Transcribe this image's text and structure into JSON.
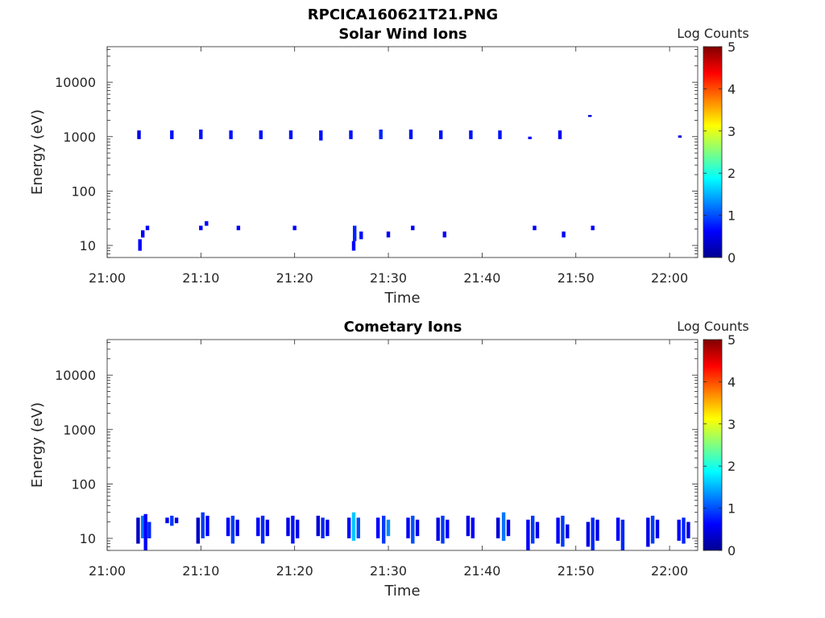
{
  "figure_title": "RPCICA160621T21.PNG",
  "colors": {
    "colormap": [
      "#00008f",
      "#0000ff",
      "#0080ff",
      "#00ffff",
      "#80ff80",
      "#ffff00",
      "#ff8000",
      "#ff0000",
      "#800000"
    ],
    "axis": "#262626"
  },
  "chart_data": [
    {
      "type": "heatmap",
      "title": "Solar Wind Ions",
      "xlabel": "Time",
      "ylabel": "Energy (eV)",
      "xlim": [
        "21:00",
        "22:03"
      ],
      "x_ticks": [
        "21:00",
        "21:10",
        "21:20",
        "21:30",
        "21:40",
        "21:50",
        "22:00"
      ],
      "ylim": [
        6,
        45000
      ],
      "yscale": "log",
      "y_ticks": [
        "10",
        "100",
        "1000",
        "10000"
      ],
      "colorbar": {
        "label": "Log Counts",
        "range": [
          0,
          5
        ],
        "ticks": [
          "0",
          "1",
          "2",
          "3",
          "4",
          "5"
        ]
      },
      "cells": [
        {
          "t": "21:03.4",
          "e": [
            900,
            1300
          ],
          "v": 0.5
        },
        {
          "t": "21:06.9",
          "e": [
            900,
            1300
          ],
          "v": 0.7
        },
        {
          "t": "21:10.0",
          "e": [
            900,
            1350
          ],
          "v": 0.7
        },
        {
          "t": "21:13.2",
          "e": [
            900,
            1300
          ],
          "v": 0.7
        },
        {
          "t": "21:16.4",
          "e": [
            900,
            1300
          ],
          "v": 0.7
        },
        {
          "t": "21:19.6",
          "e": [
            900,
            1300
          ],
          "v": 0.7
        },
        {
          "t": "21:22.8",
          "e": [
            850,
            1300
          ],
          "v": 0.7
        },
        {
          "t": "21:26.0",
          "e": [
            900,
            1300
          ],
          "v": 0.7
        },
        {
          "t": "21:29.2",
          "e": [
            900,
            1350
          ],
          "v": 0.8
        },
        {
          "t": "21:32.4",
          "e": [
            900,
            1350
          ],
          "v": 0.7
        },
        {
          "t": "21:35.6",
          "e": [
            900,
            1300
          ],
          "v": 0.7
        },
        {
          "t": "21:38.8",
          "e": [
            900,
            1300
          ],
          "v": 0.7
        },
        {
          "t": "21:41.9",
          "e": [
            900,
            1300
          ],
          "v": 0.7
        },
        {
          "t": "21:45.1",
          "e": [
            900,
            1000
          ],
          "v": 0.6
        },
        {
          "t": "21:48.3",
          "e": [
            900,
            1300
          ],
          "v": 0.6
        },
        {
          "t": "21:51.5",
          "e": [
            2300,
            2500
          ],
          "v": 0.4
        },
        {
          "t": "22:01.1",
          "e": [
            950,
            1050
          ],
          "v": 0.4
        },
        {
          "t": "21:03.5",
          "e": [
            8,
            13
          ],
          "v": 0.6
        },
        {
          "t": "21:03.8",
          "e": [
            14,
            19
          ],
          "v": 0.6
        },
        {
          "t": "21:04.3",
          "e": [
            19,
            23
          ],
          "v": 0.6
        },
        {
          "t": "21:10.0",
          "e": [
            19,
            23
          ],
          "v": 0.6
        },
        {
          "t": "21:10.6",
          "e": [
            23,
            28
          ],
          "v": 0.6
        },
        {
          "t": "21:14.0",
          "e": [
            19,
            23
          ],
          "v": 0.6
        },
        {
          "t": "21:20.0",
          "e": [
            19,
            23
          ],
          "v": 0.6
        },
        {
          "t": "21:26.4",
          "e": [
            12,
            23
          ],
          "v": 0.8
        },
        {
          "t": "21:26.3",
          "e": [
            8,
            12
          ],
          "v": 0.6
        },
        {
          "t": "21:27.1",
          "e": [
            13,
            18
          ],
          "v": 0.7
        },
        {
          "t": "21:30.0",
          "e": [
            14,
            18
          ],
          "v": 0.6
        },
        {
          "t": "21:32.6",
          "e": [
            19,
            23
          ],
          "v": 0.6
        },
        {
          "t": "21:36.0",
          "e": [
            14,
            18
          ],
          "v": 0.6
        },
        {
          "t": "21:45.6",
          "e": [
            19,
            23
          ],
          "v": 0.6
        },
        {
          "t": "21:48.7",
          "e": [
            14,
            18
          ],
          "v": 0.6
        },
        {
          "t": "21:51.8",
          "e": [
            19,
            23
          ],
          "v": 0.6
        }
      ]
    },
    {
      "type": "heatmap",
      "title": "Cometary Ions",
      "xlabel": "Time",
      "ylabel": "Energy (eV)",
      "xlim": [
        "21:00",
        "22:03"
      ],
      "x_ticks": [
        "21:00",
        "21:10",
        "21:20",
        "21:30",
        "21:40",
        "21:50",
        "22:00"
      ],
      "ylim": [
        6,
        45000
      ],
      "yscale": "log",
      "y_ticks": [
        "10",
        "100",
        "1000",
        "10000"
      ],
      "colorbar": {
        "label": "Log Counts",
        "range": [
          0,
          5
        ],
        "ticks": [
          "0",
          "1",
          "2",
          "3",
          "4",
          "5"
        ]
      },
      "cells": [
        {
          "t": "21:03.3",
          "e": [
            8,
            24
          ],
          "v": 0.3
        },
        {
          "t": "21:03.8",
          "e": [
            10,
            26
          ],
          "v": 1.2
        },
        {
          "t": "21:04.1",
          "e": [
            6,
            28
          ],
          "v": 0.6
        },
        {
          "t": "21:04.5",
          "e": [
            10,
            20
          ],
          "v": 0.8
        },
        {
          "t": "21:06.4",
          "e": [
            19,
            24
          ],
          "v": 0.5
        },
        {
          "t": "21:06.9",
          "e": [
            17,
            26
          ],
          "v": 0.9
        },
        {
          "t": "21:07.4",
          "e": [
            19,
            24
          ],
          "v": 0.5
        },
        {
          "t": "21:09.7",
          "e": [
            8,
            24
          ],
          "v": 0.3
        },
        {
          "t": "21:10.2",
          "e": [
            10,
            30
          ],
          "v": 0.9
        },
        {
          "t": "21:10.7",
          "e": [
            11,
            26
          ],
          "v": 0.6
        },
        {
          "t": "21:12.9",
          "e": [
            11,
            24
          ],
          "v": 0.6
        },
        {
          "t": "21:13.4",
          "e": [
            8,
            26
          ],
          "v": 0.9
        },
        {
          "t": "21:13.9",
          "e": [
            11,
            22
          ],
          "v": 0.5
        },
        {
          "t": "21:16.1",
          "e": [
            11,
            24
          ],
          "v": 0.6
        },
        {
          "t": "21:16.6",
          "e": [
            8,
            26
          ],
          "v": 0.8
        },
        {
          "t": "21:17.1",
          "e": [
            11,
            22
          ],
          "v": 0.5
        },
        {
          "t": "21:19.3",
          "e": [
            11,
            24
          ],
          "v": 0.5
        },
        {
          "t": "21:19.8",
          "e": [
            8,
            26
          ],
          "v": 0.7
        },
        {
          "t": "21:20.3",
          "e": [
            10,
            22
          ],
          "v": 0.5
        },
        {
          "t": "21:22.5",
          "e": [
            11,
            26
          ],
          "v": 0.4
        },
        {
          "t": "21:23.0",
          "e": [
            10,
            24
          ],
          "v": 0.8
        },
        {
          "t": "21:23.5",
          "e": [
            11,
            22
          ],
          "v": 0.5
        },
        {
          "t": "21:25.8",
          "e": [
            10,
            24
          ],
          "v": 0.7
        },
        {
          "t": "21:26.3",
          "e": [
            9,
            30
          ],
          "v": 1.6
        },
        {
          "t": "21:26.8",
          "e": [
            10,
            24
          ],
          "v": 1.0
        },
        {
          "t": "21:28.9",
          "e": [
            10,
            24
          ],
          "v": 0.6
        },
        {
          "t": "21:29.5",
          "e": [
            8,
            26
          ],
          "v": 0.9
        },
        {
          "t": "21:30.0",
          "e": [
            11,
            22
          ],
          "v": 1.3
        },
        {
          "t": "21:32.1",
          "e": [
            10,
            24
          ],
          "v": 0.6
        },
        {
          "t": "21:32.6",
          "e": [
            8,
            26
          ],
          "v": 1.0
        },
        {
          "t": "21:33.1",
          "e": [
            11,
            22
          ],
          "v": 0.5
        },
        {
          "t": "21:35.3",
          "e": [
            9,
            24
          ],
          "v": 0.5
        },
        {
          "t": "21:35.8",
          "e": [
            8,
            26
          ],
          "v": 0.9
        },
        {
          "t": "21:36.3",
          "e": [
            10,
            22
          ],
          "v": 0.6
        },
        {
          "t": "21:38.5",
          "e": [
            11,
            26
          ],
          "v": 0.5
        },
        {
          "t": "21:39.0",
          "e": [
            10,
            24
          ],
          "v": 0.6
        },
        {
          "t": "21:41.7",
          "e": [
            10,
            24
          ],
          "v": 0.4
        },
        {
          "t": "21:42.3",
          "e": [
            9,
            30
          ],
          "v": 1.2
        },
        {
          "t": "21:42.8",
          "e": [
            11,
            22
          ],
          "v": 0.6
        },
        {
          "t": "21:44.9",
          "e": [
            6,
            22
          ],
          "v": 0.6
        },
        {
          "t": "21:45.4",
          "e": [
            8,
            26
          ],
          "v": 0.9
        },
        {
          "t": "21:45.9",
          "e": [
            10,
            20
          ],
          "v": 0.5
        },
        {
          "t": "21:48.1",
          "e": [
            8,
            24
          ],
          "v": 0.6
        },
        {
          "t": "21:48.6",
          "e": [
            7,
            26
          ],
          "v": 0.9
        },
        {
          "t": "21:49.1",
          "e": [
            10,
            18
          ],
          "v": 0.5
        },
        {
          "t": "21:51.3",
          "e": [
            7,
            20
          ],
          "v": 0.5
        },
        {
          "t": "21:51.8",
          "e": [
            6,
            24
          ],
          "v": 0.8
        },
        {
          "t": "21:52.3",
          "e": [
            9,
            22
          ],
          "v": 0.5
        },
        {
          "t": "21:54.5",
          "e": [
            9,
            24
          ],
          "v": 0.6
        },
        {
          "t": "21:55.0",
          "e": [
            6,
            22
          ],
          "v": 0.8
        },
        {
          "t": "21:57.7",
          "e": [
            7,
            24
          ],
          "v": 0.5
        },
        {
          "t": "21:58.2",
          "e": [
            8,
            26
          ],
          "v": 0.9
        },
        {
          "t": "21:58.7",
          "e": [
            10,
            22
          ],
          "v": 0.5
        },
        {
          "t": "22:01.0",
          "e": [
            9,
            22
          ],
          "v": 0.6
        },
        {
          "t": "22:01.5",
          "e": [
            8,
            24
          ],
          "v": 0.8
        },
        {
          "t": "22:02.0",
          "e": [
            10,
            20
          ],
          "v": 0.5
        }
      ]
    }
  ]
}
